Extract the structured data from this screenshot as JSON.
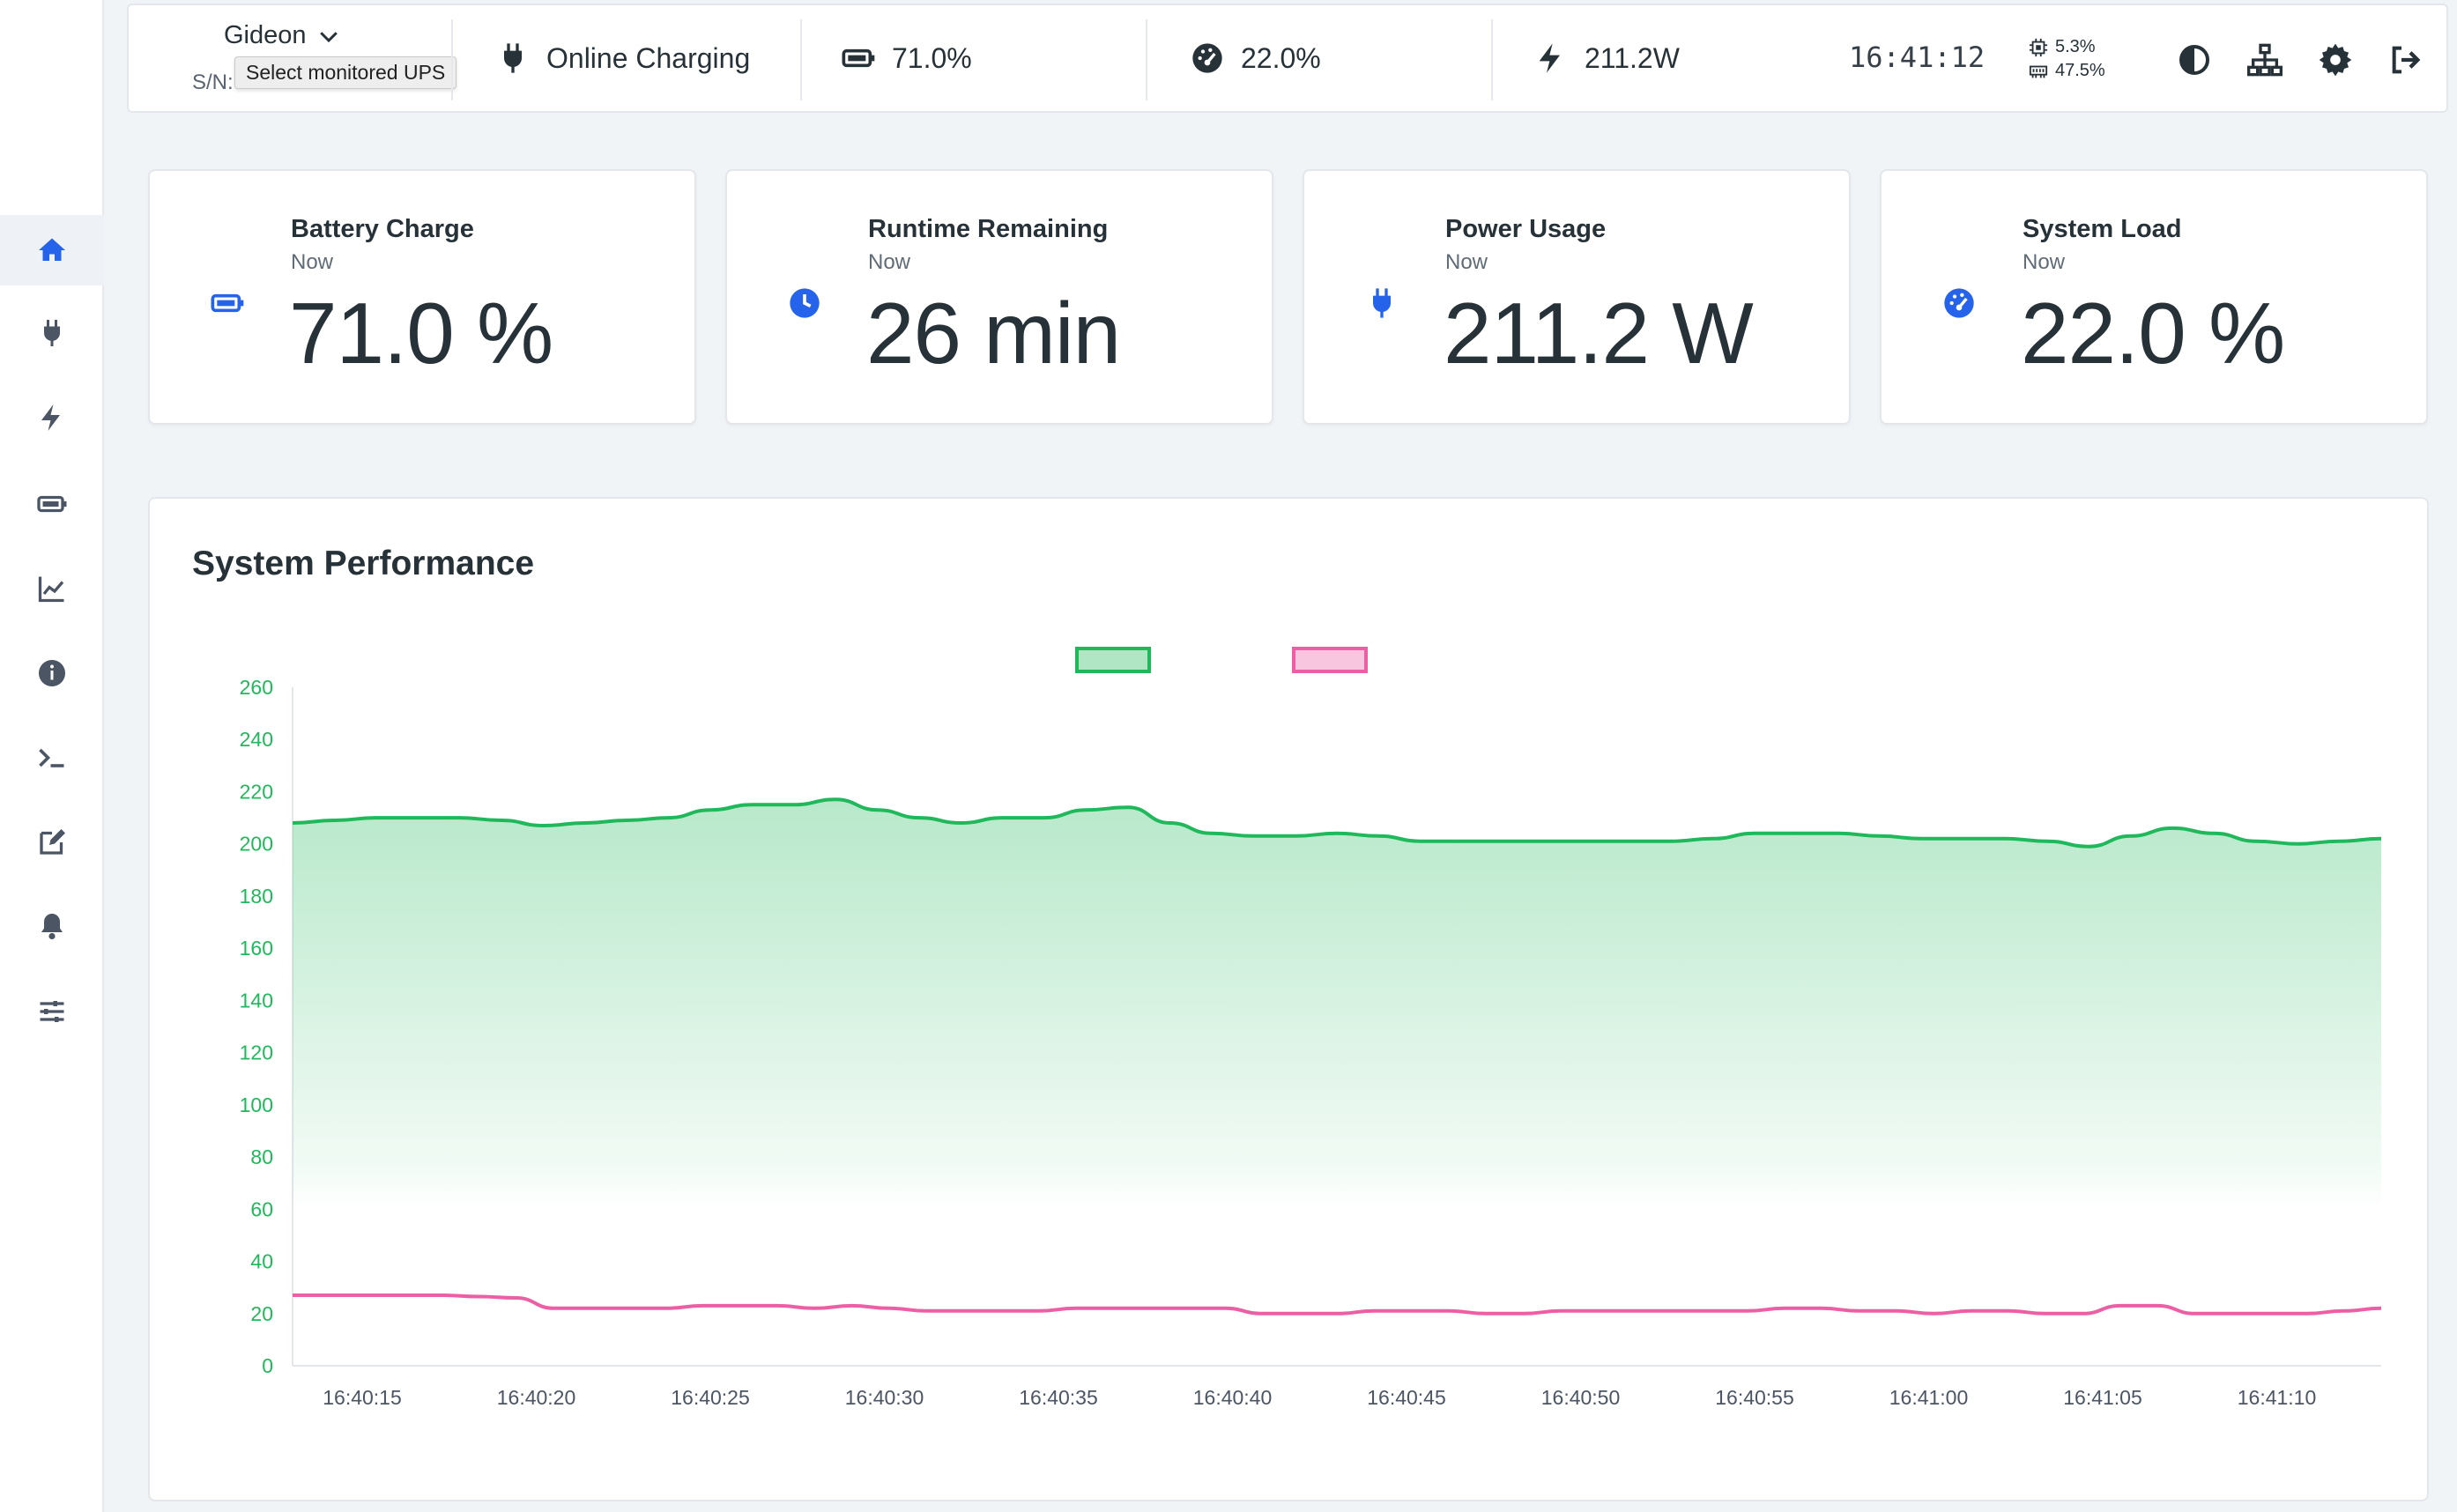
{
  "header": {
    "ups_name": "Gideon",
    "serial": "S/N:",
    "tooltip": "Select monitored UPS",
    "status": "Online Charging",
    "battery": "71.0%",
    "load": "22.0%",
    "power": "211.2W",
    "clock": "16:41:12",
    "cpu": "5.3%",
    "memory": "47.5%"
  },
  "sidebar": {
    "items": [
      {
        "icon": "home-icon",
        "active": true
      },
      {
        "icon": "plug-icon"
      },
      {
        "icon": "bolt-icon"
      },
      {
        "icon": "battery-icon"
      },
      {
        "icon": "chart-line-icon"
      },
      {
        "icon": "info-icon"
      },
      {
        "icon": "terminal-icon"
      },
      {
        "icon": "edit-icon"
      },
      {
        "icon": "bell-icon"
      },
      {
        "icon": "sliders-icon"
      }
    ]
  },
  "cards": [
    {
      "title": "Battery Charge",
      "sub": "Now",
      "value": "71.0 %",
      "icon": "battery-icon"
    },
    {
      "title": "Runtime Remaining",
      "sub": "Now",
      "value": "26 min",
      "icon": "clock-icon"
    },
    {
      "title": "Power Usage",
      "sub": "Now",
      "value": "211.2 W",
      "icon": "plug-icon"
    },
    {
      "title": "System Load",
      "sub": "Now",
      "value": "22.0 %",
      "icon": "gauge-icon"
    }
  ],
  "colors": {
    "accent": "#2563eb",
    "power_series": "#1fb85a",
    "load_series": "#ec5fa4",
    "axis_text": "#1fb85a"
  },
  "panel": {
    "title": "System Performance"
  },
  "chart_data": {
    "type": "line",
    "title": "System Performance",
    "ylim": [
      0,
      260
    ],
    "yticks": [
      0,
      20,
      40,
      60,
      80,
      100,
      120,
      140,
      160,
      180,
      200,
      220,
      240,
      260
    ],
    "xticks": [
      "16:40:15",
      "16:40:20",
      "16:40:25",
      "16:40:30",
      "16:40:35",
      "16:40:40",
      "16:40:45",
      "16:40:50",
      "16:40:55",
      "16:41:00",
      "16:41:05",
      "16:41:10"
    ],
    "x_start": "16:40:13",
    "x_end": "16:41:13",
    "grid": false,
    "legend": "top-center",
    "series": [
      {
        "color": "#1fb85a",
        "fill": true,
        "values": [
          208,
          209,
          210,
          210,
          210,
          209,
          207,
          208,
          209,
          210,
          213,
          215,
          215,
          217,
          213,
          210,
          208,
          210,
          210,
          213,
          214,
          208,
          204,
          203,
          203,
          204,
          203,
          201,
          201,
          201,
          201,
          201,
          201,
          201,
          202,
          204,
          204,
          204,
          203,
          202,
          202,
          202,
          201,
          199,
          203,
          206,
          204,
          201,
          200,
          201,
          202
        ]
      },
      {
        "color": "#ec5fa4",
        "fill": false,
        "values": [
          27,
          27,
          27,
          27,
          27,
          26.5,
          26,
          22,
          22,
          22,
          22,
          23,
          23,
          23,
          22,
          23,
          22,
          21,
          21,
          21,
          21,
          22,
          22,
          22,
          22,
          22,
          20,
          20,
          20,
          21,
          21,
          21,
          20,
          20,
          21,
          21,
          21,
          21,
          21,
          21,
          22,
          22,
          21,
          21,
          20,
          21,
          21,
          20,
          20,
          23,
          23,
          20,
          20,
          20,
          20,
          21,
          22
        ]
      }
    ]
  }
}
